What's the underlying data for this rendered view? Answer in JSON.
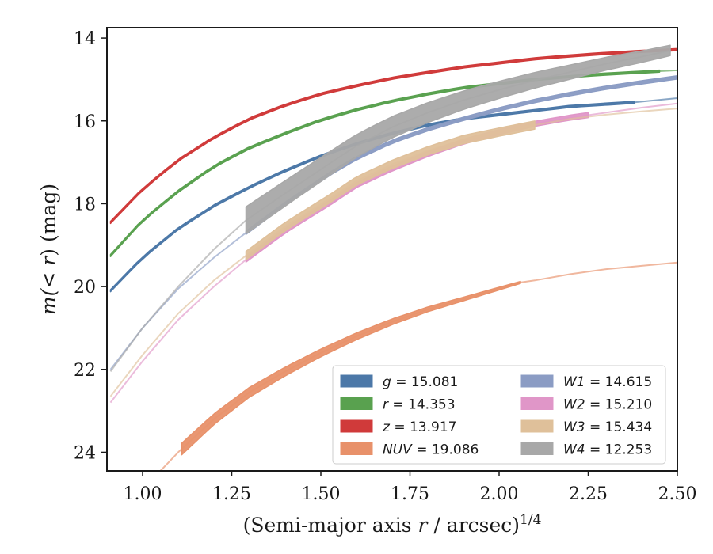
{
  "chart_data": {
    "type": "line",
    "xlabel_main": "(Semi-major axis ",
    "xlabel_var": "r",
    "xlabel_rest": " / arcsec)",
    "xlabel_sup": "1/4",
    "ylabel_pre": "m(< ",
    "ylabel_var": "r",
    "ylabel_post": ") (mag)",
    "xlim": [
      0.9,
      2.5
    ],
    "ylim": [
      24.45,
      13.75
    ],
    "y_inverted": true,
    "xticks": [
      "1.00",
      "1.25",
      "1.50",
      "1.75",
      "2.00",
      "2.25",
      "2.50"
    ],
    "xtick_values": [
      1.0,
      1.25,
      1.5,
      1.75,
      2.0,
      2.25,
      2.5
    ],
    "yticks": [
      "14",
      "16",
      "18",
      "20",
      "22",
      "24"
    ],
    "ytick_values": [
      14,
      16,
      18,
      20,
      22,
      24
    ],
    "grid": false,
    "legend_position": "lower-right",
    "legend_columns": 2,
    "series": [
      {
        "name": "g",
        "legend_value": "15.081",
        "color": "#4c78a8",
        "x": [
          0.91,
          1.0,
          1.1,
          1.2,
          1.3,
          1.4,
          1.5,
          1.6,
          1.7,
          1.8,
          1.9,
          2.0,
          2.1,
          2.2,
          2.38,
          2.5
        ],
        "y": [
          20.1,
          19.3,
          18.6,
          18.05,
          17.6,
          17.2,
          16.85,
          16.55,
          16.3,
          16.1,
          15.95,
          15.85,
          15.75,
          15.65,
          15.55,
          15.45
        ],
        "band_x_max": 2.38,
        "band_width": 0.05
      },
      {
        "name": "r",
        "legend_value": "14.353",
        "color": "#59a14f",
        "x": [
          0.91,
          1.0,
          1.1,
          1.2,
          1.3,
          1.4,
          1.5,
          1.6,
          1.7,
          1.8,
          1.9,
          2.0,
          2.1,
          2.2,
          2.3,
          2.45,
          2.5
        ],
        "y": [
          19.25,
          18.4,
          17.7,
          17.1,
          16.65,
          16.3,
          15.98,
          15.73,
          15.52,
          15.35,
          15.2,
          15.1,
          15.0,
          14.93,
          14.87,
          14.8,
          14.78
        ],
        "band_x_max": 2.45,
        "band_width": 0.05
      },
      {
        "name": "z",
        "legend_value": "13.917",
        "color": "#d03a3a",
        "x": [
          0.91,
          1.0,
          1.1,
          1.2,
          1.3,
          1.4,
          1.5,
          1.6,
          1.7,
          1.8,
          1.9,
          2.0,
          2.1,
          2.2,
          2.3,
          2.4,
          2.5
        ],
        "y": [
          18.45,
          17.65,
          16.95,
          16.4,
          15.95,
          15.62,
          15.35,
          15.15,
          14.97,
          14.83,
          14.7,
          14.6,
          14.5,
          14.43,
          14.37,
          14.32,
          14.28
        ],
        "band_x_max": 2.5,
        "band_width": 0.05
      },
      {
        "name": "NUV",
        "legend_value": "19.086",
        "color": "#e8916a",
        "x": [
          1.05,
          1.1,
          1.2,
          1.3,
          1.4,
          1.5,
          1.6,
          1.7,
          1.8,
          1.9,
          2.0,
          2.06,
          2.1,
          2.2,
          2.3,
          2.4,
          2.5
        ],
        "y": [
          24.45,
          24.0,
          23.2,
          22.55,
          22.05,
          21.6,
          21.2,
          20.85,
          20.55,
          20.3,
          20.05,
          19.9,
          19.85,
          19.7,
          19.58,
          19.5,
          19.42
        ],
        "band_x_min": 1.11,
        "band_x_max": 2.06,
        "band_width_start": 0.28,
        "band_width_end": 0.05
      },
      {
        "name": "W1",
        "legend_value": "14.615",
        "color": "#8b9cc4",
        "x": [
          0.91,
          1.0,
          1.1,
          1.2,
          1.29,
          1.4,
          1.53,
          1.6,
          1.7,
          1.8,
          1.9,
          2.0,
          2.1,
          2.2,
          2.3,
          2.4,
          2.5
        ],
        "y": [
          22.0,
          21.0,
          20.05,
          19.3,
          18.7,
          18.0,
          17.25,
          16.9,
          16.5,
          16.2,
          15.95,
          15.72,
          15.52,
          15.35,
          15.2,
          15.07,
          14.95
        ],
        "band_x_min": 1.29,
        "band_x_max": 2.5,
        "band_width": 0.08
      },
      {
        "name": "W2",
        "legend_value": "15.210",
        "color": "#e096c8",
        "x": [
          0.91,
          1.0,
          1.1,
          1.2,
          1.29,
          1.4,
          1.53,
          1.6,
          1.7,
          1.8,
          1.9,
          2.0,
          2.1,
          2.2,
          2.3,
          2.4,
          2.5
        ],
        "y": [
          22.8,
          21.8,
          20.8,
          20.0,
          19.35,
          18.65,
          17.95,
          17.55,
          17.15,
          16.8,
          16.5,
          16.27,
          16.07,
          15.92,
          15.8,
          15.68,
          15.58
        ],
        "band_x_min": 1.29,
        "band_x_max": 2.25,
        "band_width": 0.12
      },
      {
        "name": "W3",
        "legend_value": "15.434",
        "color": "#dfc09a",
        "x": [
          0.91,
          1.0,
          1.1,
          1.2,
          1.29,
          1.4,
          1.53,
          1.6,
          1.7,
          1.8,
          1.9,
          2.0,
          2.1,
          2.2,
          2.3,
          2.4,
          2.5
        ],
        "y": [
          22.65,
          21.65,
          20.65,
          19.85,
          19.25,
          18.55,
          17.85,
          17.45,
          17.05,
          16.72,
          16.45,
          16.27,
          16.1,
          15.95,
          15.85,
          15.77,
          15.7
        ],
        "band_x_min": 1.29,
        "band_x_max": 2.1,
        "band_width": 0.2
      },
      {
        "name": "W4",
        "legend_value": "12.253",
        "color": "#a8a8a8",
        "x": [
          0.91,
          1.0,
          1.1,
          1.2,
          1.29,
          1.4,
          1.53,
          1.6,
          1.7,
          1.8,
          1.9,
          2.0,
          2.1,
          2.2,
          2.3,
          2.4,
          2.48
        ],
        "y": [
          22.05,
          21.0,
          20.0,
          19.1,
          18.4,
          17.75,
          17.0,
          16.6,
          16.15,
          15.8,
          15.5,
          15.25,
          15.02,
          14.82,
          14.62,
          14.45,
          14.3
        ],
        "band_x_min": 1.29,
        "band_x_max": 2.48,
        "band_width_start": 0.65,
        "band_width_end": 0.25
      }
    ]
  }
}
